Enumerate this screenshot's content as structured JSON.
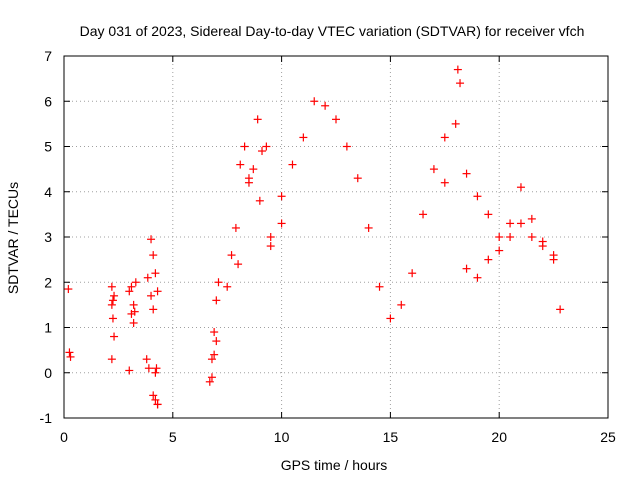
{
  "chart_data": {
    "type": "scatter",
    "title": "Day 031 of 2023, Sidereal Day-to-day VTEC variation (SDTVAR) for receiver vfch",
    "xlabel": "GPS time / hours",
    "ylabel": "SDTVAR / TECUs",
    "xlim": [
      0,
      25
    ],
    "ylim": [
      -1,
      7
    ],
    "xticks": [
      "0",
      "5",
      "10",
      "15",
      "20",
      "25"
    ],
    "yticks": [
      "-1",
      "0",
      "1",
      "2",
      "3",
      "4",
      "5",
      "6",
      "7"
    ],
    "grid": true,
    "marker": "+",
    "series": [
      {
        "name": "SDTVAR",
        "color": "#ff0000",
        "x": [
          0.2,
          0.25,
          0.3,
          2.2,
          2.25,
          2.3,
          2.2,
          2.25,
          2.2,
          2.3,
          3.0,
          3.1,
          3.2,
          3.3,
          3.1,
          3.2,
          3.25,
          3.0,
          3.8,
          3.9,
          4.0,
          3.85,
          4.0,
          4.1,
          4.2,
          4.3,
          4.1,
          4.2,
          4.25,
          4.3,
          4.1,
          4.2,
          4.3,
          6.7,
          6.8,
          6.9,
          7.0,
          7.1,
          6.8,
          6.9,
          7.0,
          7.5,
          7.7,
          7.9,
          8.1,
          8.3,
          8.5,
          8.7,
          8.9,
          9.1,
          9.3,
          9.5,
          10.0,
          10.5,
          11.0,
          11.5,
          12.0,
          12.5,
          13.0,
          13.5,
          14.0,
          14.5,
          15.0,
          8.0,
          8.5,
          9.0,
          9.5,
          10.0,
          15.5,
          16.0,
          16.5,
          17.0,
          17.5,
          18.0,
          18.5,
          19.0,
          19.5,
          20.0,
          20.5,
          21.0,
          21.5,
          22.0,
          22.5,
          22.8,
          18.1,
          18.2,
          17.5,
          18.5,
          19.0,
          19.5,
          20.0,
          20.5,
          21.0,
          21.5,
          22.0,
          22.5
        ],
        "values": [
          1.85,
          0.45,
          0.35,
          1.9,
          1.6,
          0.8,
          0.3,
          1.2,
          1.5,
          1.7,
          0.05,
          1.3,
          1.1,
          2.0,
          1.9,
          1.5,
          1.35,
          1.8,
          0.3,
          0.1,
          1.7,
          2.1,
          2.95,
          2.6,
          2.2,
          1.8,
          1.4,
          0.0,
          0.1,
          -0.7,
          -0.5,
          -0.6,
          -0.7,
          -0.2,
          0.3,
          0.9,
          1.6,
          2.0,
          -0.1,
          0.4,
          0.7,
          1.9,
          2.6,
          3.2,
          4.6,
          5.0,
          4.3,
          4.5,
          5.6,
          4.9,
          5.0,
          3.0,
          3.9,
          4.6,
          5.2,
          6.0,
          5.9,
          5.6,
          5.0,
          4.3,
          3.2,
          1.9,
          1.2,
          2.4,
          4.2,
          3.8,
          2.8,
          3.3,
          1.5,
          2.2,
          3.5,
          4.5,
          5.2,
          5.5,
          4.4,
          3.9,
          3.5,
          3.0,
          3.3,
          4.1,
          3.4,
          2.9,
          2.5,
          1.4,
          6.7,
          6.4,
          4.2,
          2.3,
          2.1,
          2.5,
          2.7,
          3.0,
          3.3,
          3.0,
          2.8,
          2.6
        ]
      }
    ]
  }
}
